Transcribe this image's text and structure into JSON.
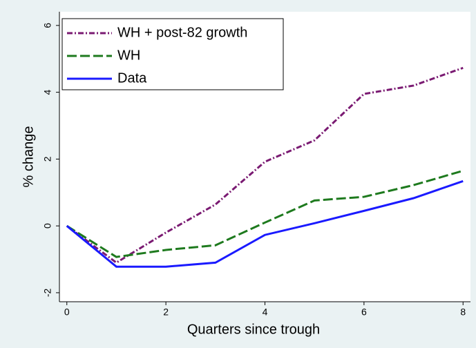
{
  "chart_data": {
    "type": "line",
    "xlabel": "Quarters since trough",
    "ylabel": "% change",
    "x": [
      0,
      1,
      2,
      3,
      4,
      5,
      6,
      7,
      8
    ],
    "series": [
      {
        "name": "WH + post-82 growth",
        "color": "#7a1a72",
        "dash": "dashdot",
        "values": [
          0,
          -1.1,
          -0.2,
          0.64,
          1.92,
          2.56,
          3.95,
          4.2,
          4.73
        ]
      },
      {
        "name": "WH",
        "color": "#1e7a1e",
        "dash": "longdash",
        "values": [
          0,
          -0.93,
          -0.72,
          -0.58,
          0.1,
          0.76,
          0.87,
          1.22,
          1.65
        ]
      },
      {
        "name": "Data",
        "color": "#1a1aff",
        "dash": "solid",
        "values": [
          0,
          -1.22,
          -1.22,
          -1.1,
          -0.27,
          0.08,
          0.45,
          0.83,
          1.34
        ]
      }
    ],
    "xlim": [
      -0.15,
      8.15
    ],
    "xticks": [
      0,
      2,
      4,
      6,
      8
    ],
    "ylim": [
      -2.27,
      6.41
    ],
    "yticks": [
      -2,
      0,
      2,
      4,
      6
    ],
    "legend": "top-left"
  }
}
